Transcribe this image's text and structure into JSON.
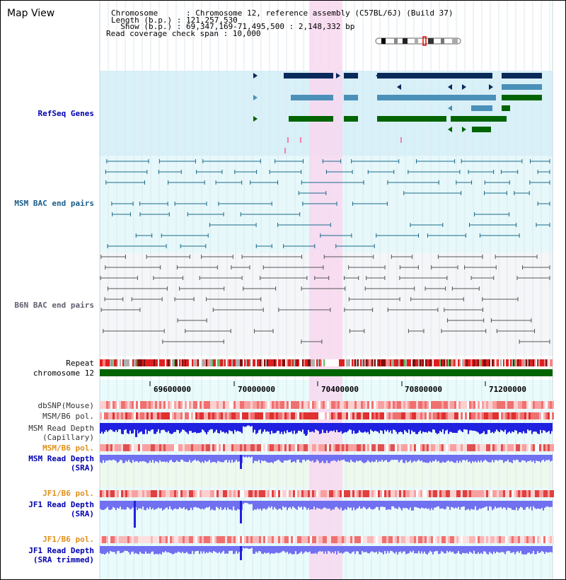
{
  "view": {
    "title": "Map View",
    "info_lines": [
      "Chromosome      : Chromosome 12, reference assembly (C57BL/6J) (Build 37)",
      "Length (b.p.) : 121,257,530",
      "  Show (b.p.) : 69,347,169-71,495,500 : 2,148,332 bp",
      "Read coverage check span : 10,000"
    ]
  },
  "tracks": {
    "refseq": "RefSeq Genes",
    "msm_bac": "MSM BAC end pairs",
    "b6n_bac": "B6N BAC end pairs",
    "repeat": "Repeat",
    "chromosome": "chromosome 12",
    "dbsnp": "dbSNP(Mouse)",
    "msm_b6_pol_1": "MSM/B6 pol.",
    "msm_read_cap": "MSM Read Depth\n(Capillary)",
    "msm_b6_pol_2": "MSM/B6 pol.",
    "msm_read_sra": "MSM Read Depth\n(SRA)",
    "jf1_b6_pol_1": "JF1/B6 pol.",
    "jf1_read_sra": "JF1 Read Depth\n(SRA)",
    "jf1_b6_pol_2": "JF1/B6 pol.",
    "jf1_read_trim": "JF1 Read Depth\n(SRA trimmed)"
  },
  "axis": {
    "ticks": [
      "69600000",
      "70000000",
      "70400000",
      "70800000",
      "71200000"
    ]
  },
  "colors": {
    "refseq_bg": "#d8f0f8",
    "msm_bg": "#e6f8fa",
    "b6n_bg": "#f4f6f8",
    "highlight": "#f8d8f0",
    "chromosome": "#006400",
    "gene_dark": "#0a2a5a",
    "gene_mid": "#4a90b8",
    "gene_green": "#006400",
    "depth_dark": "#2020e0",
    "depth_light": "#7070f0"
  }
}
